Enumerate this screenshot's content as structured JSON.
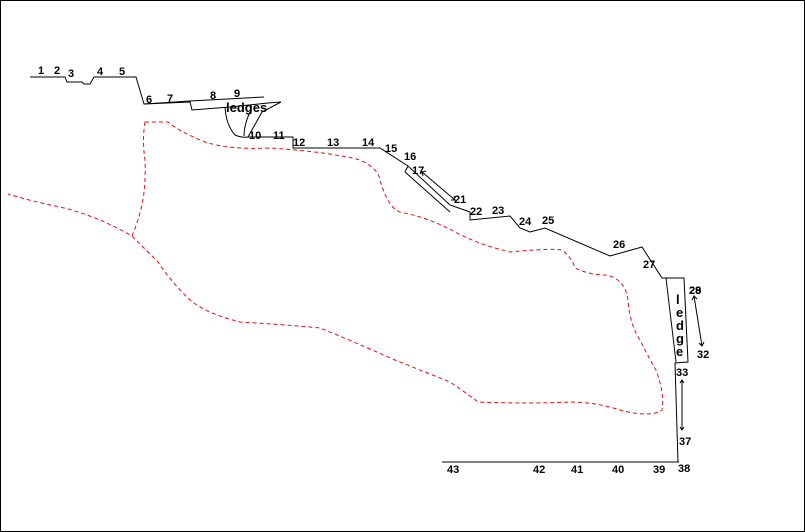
{
  "point_labels": [
    "1",
    "2",
    "3",
    "4",
    "5",
    "6",
    "7",
    "8",
    "9",
    "10",
    "11",
    "12",
    "13",
    "14",
    "15",
    "16",
    "17",
    "21",
    "22",
    "23",
    "24",
    "25",
    "26",
    "27",
    "28",
    "29",
    "32",
    "33",
    "37",
    "38",
    "39",
    "40",
    "41",
    "42",
    "43"
  ],
  "annotations": {
    "ledges": "ledges",
    "ledge_letters": [
      "l",
      "e",
      "d",
      "g",
      "e"
    ]
  },
  "colors": {
    "boundary": "#000000",
    "dashed_line": "#e01010",
    "frame": "#000000"
  }
}
